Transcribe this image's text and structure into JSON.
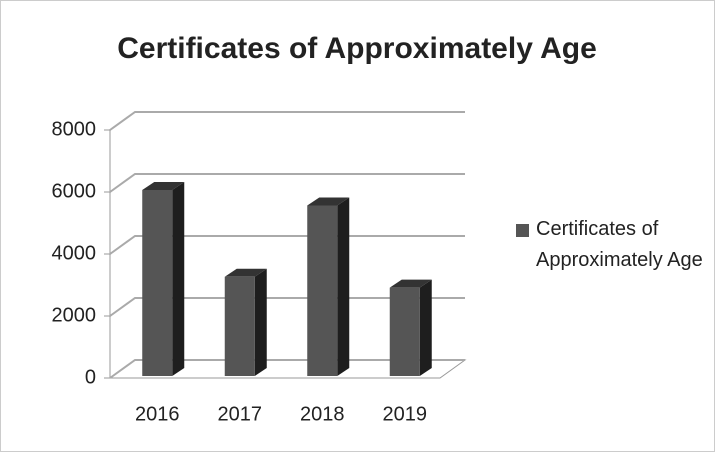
{
  "chart_data": {
    "type": "bar3d",
    "title": "Certificates of Approximately Age",
    "categories": [
      "2016",
      "2017",
      "2018",
      "2019"
    ],
    "series": [
      {
        "name": "Certificates of Approximately Age",
        "color": "#555555",
        "values": [
          6000,
          3200,
          5500,
          2850
        ]
      }
    ],
    "ylim": [
      0,
      8000
    ],
    "yticks": [
      0,
      2000,
      4000,
      6000,
      8000
    ],
    "grid": true,
    "legend": "right"
  }
}
